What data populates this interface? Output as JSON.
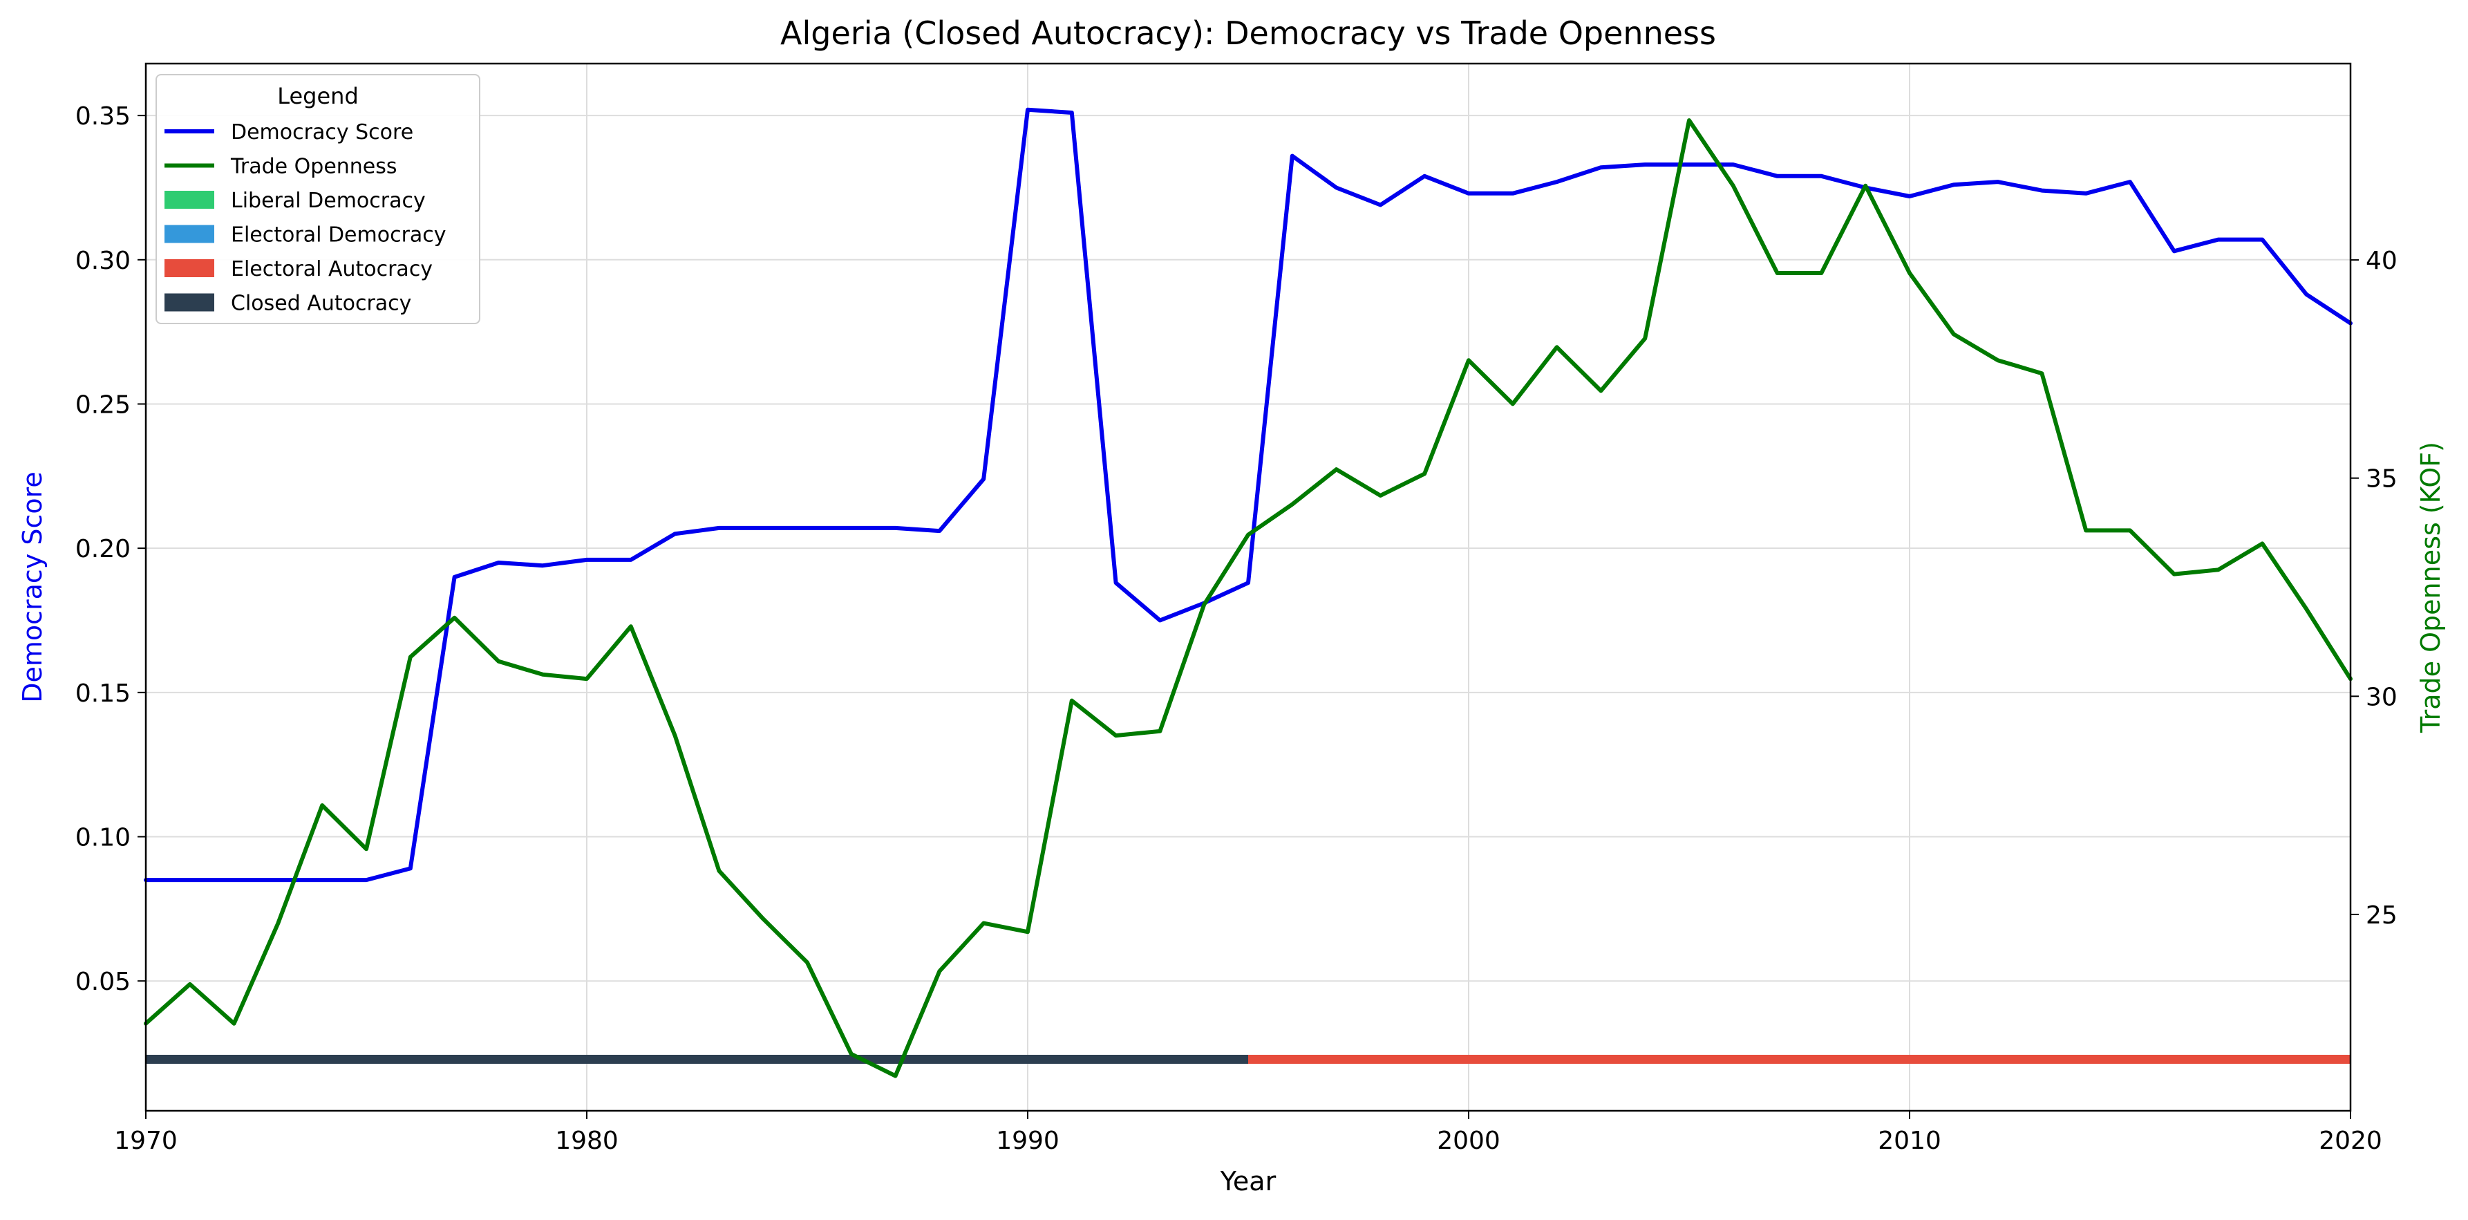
{
  "colors": {
    "democracy": "#0000ee",
    "trade": "#007a00",
    "liberal_democracy": "#2ecc71",
    "electoral_democracy": "#3498db",
    "electoral_autocracy": "#e74c3c",
    "closed_autocracy": "#2c3e50",
    "grid": "#dddddd"
  },
  "chart_data": {
    "type": "line",
    "title": "Algeria (Closed Autocracy): Democracy vs Trade Openness",
    "xlabel": "Year",
    "ylabel_left": "Democracy Score",
    "ylabel_right": "Trade Openness (KOF)",
    "xlim": [
      1970,
      2020
    ],
    "ylim_left": [
      0.005,
      0.368
    ],
    "ylim_right": [
      20.5,
      44.5
    ],
    "grid": true,
    "legend_position": "upper-left",
    "x_ticks": [
      1970,
      1980,
      1990,
      2000,
      2010,
      2020
    ],
    "y_left_ticks": [
      0.05,
      0.1,
      0.15,
      0.2,
      0.25,
      0.3,
      0.35
    ],
    "y_left_tick_labels": [
      "0.05",
      "0.10",
      "0.15",
      "0.20",
      "0.25",
      "0.30",
      "0.35"
    ],
    "y_right_ticks": [
      25,
      30,
      35,
      40
    ],
    "legend": {
      "title": "Legend",
      "entries": [
        "Democracy Score",
        "Trade Openness",
        "Liberal Democracy",
        "Electoral Democracy",
        "Electoral Autocracy",
        "Closed Autocracy"
      ]
    },
    "x": [
      1970,
      1971,
      1972,
      1973,
      1974,
      1975,
      1976,
      1977,
      1978,
      1979,
      1980,
      1981,
      1982,
      1983,
      1984,
      1985,
      1986,
      1987,
      1988,
      1989,
      1990,
      1991,
      1992,
      1993,
      1994,
      1995,
      1996,
      1997,
      1998,
      1999,
      2000,
      2001,
      2002,
      2003,
      2004,
      2005,
      2006,
      2007,
      2008,
      2009,
      2010,
      2011,
      2012,
      2013,
      2014,
      2015,
      2016,
      2017,
      2018,
      2019,
      2020
    ],
    "series": [
      {
        "name": "Democracy Score",
        "axis": "left",
        "values": [
          0.085,
          0.085,
          0.085,
          0.085,
          0.085,
          0.085,
          0.089,
          0.19,
          0.195,
          0.194,
          0.196,
          0.196,
          0.205,
          0.207,
          0.207,
          0.207,
          0.207,
          0.207,
          0.206,
          0.224,
          0.352,
          0.351,
          0.188,
          0.175,
          0.181,
          0.188,
          0.336,
          0.325,
          0.319,
          0.329,
          0.323,
          0.323,
          0.327,
          0.332,
          0.333,
          0.333,
          0.333,
          0.329,
          0.329,
          0.325,
          0.322,
          0.326,
          0.327,
          0.324,
          0.323,
          0.327,
          0.303,
          0.307,
          0.307,
          0.288,
          0.278
        ]
      },
      {
        "name": "Trade Openness",
        "axis": "right",
        "values": [
          22.5,
          23.4,
          22.5,
          24.8,
          27.5,
          26.5,
          30.9,
          31.8,
          30.8,
          30.5,
          30.4,
          31.6,
          29.1,
          26.0,
          24.9,
          23.9,
          21.8,
          21.3,
          23.7,
          24.8,
          24.6,
          29.9,
          29.1,
          29.2,
          32.1,
          33.7,
          34.4,
          35.2,
          34.6,
          35.1,
          37.7,
          36.7,
          38.0,
          37.0,
          38.2,
          43.2,
          41.7,
          39.7,
          39.7,
          41.7,
          39.7,
          38.3,
          37.7,
          37.4,
          33.8,
          33.8,
          32.8,
          32.9,
          33.5,
          32.0,
          30.4
        ]
      }
    ],
    "regime_band": [
      {
        "regime": "Closed Autocracy",
        "start": 1970,
        "end": 1995
      },
      {
        "regime": "Electoral Autocracy",
        "start": 1995,
        "end": 2020
      }
    ]
  }
}
